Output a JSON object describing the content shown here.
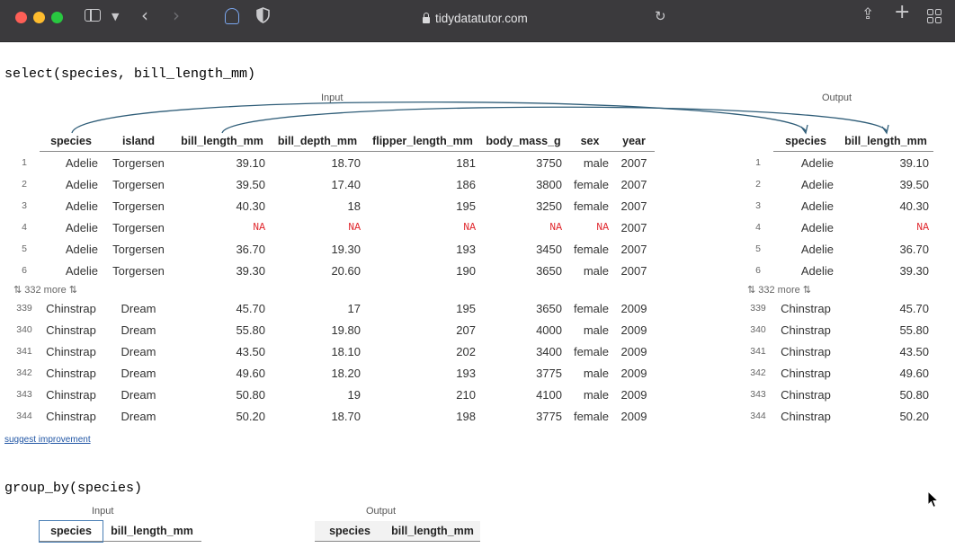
{
  "browser": {
    "url": "tidydatatutor.com"
  },
  "section1": {
    "code": "select(species, bill_length_mm)",
    "input_label": "Input",
    "output_label": "Output",
    "input_columns": [
      "species",
      "island",
      "bill_length_mm",
      "bill_depth_mm",
      "flipper_length_mm",
      "body_mass_g",
      "sex",
      "year"
    ],
    "output_columns": [
      "species",
      "bill_length_mm"
    ],
    "more_label": "⇅ 332 more ⇅",
    "rows_top": [
      {
        "i": "1",
        "species": "Adelie",
        "island": "Torgersen",
        "bill_length_mm": "39.10",
        "bill_depth_mm": "18.70",
        "flipper_length_mm": "181",
        "body_mass_g": "3750",
        "sex": "male",
        "year": "2007"
      },
      {
        "i": "2",
        "species": "Adelie",
        "island": "Torgersen",
        "bill_length_mm": "39.50",
        "bill_depth_mm": "17.40",
        "flipper_length_mm": "186",
        "body_mass_g": "3800",
        "sex": "female",
        "year": "2007"
      },
      {
        "i": "3",
        "species": "Adelie",
        "island": "Torgersen",
        "bill_length_mm": "40.30",
        "bill_depth_mm": "18",
        "flipper_length_mm": "195",
        "body_mass_g": "3250",
        "sex": "female",
        "year": "2007"
      },
      {
        "i": "4",
        "species": "Adelie",
        "island": "Torgersen",
        "bill_length_mm": "NA",
        "bill_depth_mm": "NA",
        "flipper_length_mm": "NA",
        "body_mass_g": "NA",
        "sex": "NA",
        "year": "2007"
      },
      {
        "i": "5",
        "species": "Adelie",
        "island": "Torgersen",
        "bill_length_mm": "36.70",
        "bill_depth_mm": "19.30",
        "flipper_length_mm": "193",
        "body_mass_g": "3450",
        "sex": "female",
        "year": "2007"
      },
      {
        "i": "6",
        "species": "Adelie",
        "island": "Torgersen",
        "bill_length_mm": "39.30",
        "bill_depth_mm": "20.60",
        "flipper_length_mm": "190",
        "body_mass_g": "3650",
        "sex": "male",
        "year": "2007"
      }
    ],
    "rows_bottom": [
      {
        "i": "339",
        "species": "Chinstrap",
        "island": "Dream",
        "bill_length_mm": "45.70",
        "bill_depth_mm": "17",
        "flipper_length_mm": "195",
        "body_mass_g": "3650",
        "sex": "female",
        "year": "2009"
      },
      {
        "i": "340",
        "species": "Chinstrap",
        "island": "Dream",
        "bill_length_mm": "55.80",
        "bill_depth_mm": "19.80",
        "flipper_length_mm": "207",
        "body_mass_g": "4000",
        "sex": "male",
        "year": "2009"
      },
      {
        "i": "341",
        "species": "Chinstrap",
        "island": "Dream",
        "bill_length_mm": "43.50",
        "bill_depth_mm": "18.10",
        "flipper_length_mm": "202",
        "body_mass_g": "3400",
        "sex": "female",
        "year": "2009"
      },
      {
        "i": "342",
        "species": "Chinstrap",
        "island": "Dream",
        "bill_length_mm": "49.60",
        "bill_depth_mm": "18.20",
        "flipper_length_mm": "193",
        "body_mass_g": "3775",
        "sex": "male",
        "year": "2009"
      },
      {
        "i": "343",
        "species": "Chinstrap",
        "island": "Dream",
        "bill_length_mm": "50.80",
        "bill_depth_mm": "19",
        "flipper_length_mm": "210",
        "body_mass_g": "4100",
        "sex": "male",
        "year": "2009"
      },
      {
        "i": "344",
        "species": "Chinstrap",
        "island": "Dream",
        "bill_length_mm": "50.20",
        "bill_depth_mm": "18.70",
        "flipper_length_mm": "198",
        "body_mass_g": "3775",
        "sex": "female",
        "year": "2009"
      }
    ],
    "suggest_label": "suggest improvement"
  },
  "section2": {
    "code": "group_by(species)",
    "input_label": "Input",
    "output_label": "Output",
    "input_columns": [
      "species",
      "bill_length_mm"
    ],
    "output_columns": [
      "species",
      "bill_length_mm"
    ]
  },
  "colors": {
    "na": "#e0242a",
    "arrow": "#2f5d78",
    "toolbar": "#3b3a3d",
    "link": "#2156a5"
  }
}
